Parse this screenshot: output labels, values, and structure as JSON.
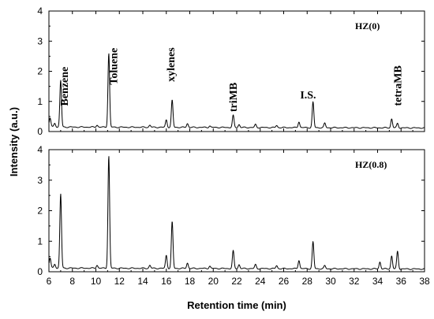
{
  "chart_data": {
    "type": "line",
    "xlabel": "Retention time (min)",
    "ylabel": "Intensity (a.u.)",
    "xlim": [
      6,
      38
    ],
    "x_ticks": [
      6,
      8,
      10,
      12,
      14,
      16,
      18,
      20,
      22,
      24,
      26,
      28,
      30,
      32,
      34,
      36,
      38
    ],
    "grid": false,
    "panels": [
      {
        "title": "HZ(0)",
        "ylim": [
          0,
          4
        ],
        "y_ticks": [
          0,
          1,
          2,
          3,
          4
        ],
        "baseline": 0.15,
        "peaks": [
          {
            "x": 6.1,
            "y": 0.45
          },
          {
            "x": 6.5,
            "y": 0.28
          },
          {
            "x": 7.0,
            "y": 1.7
          },
          {
            "x": 10.1,
            "y": 0.22
          },
          {
            "x": 11.1,
            "y": 2.6
          },
          {
            "x": 14.6,
            "y": 0.22
          },
          {
            "x": 16.0,
            "y": 0.4
          },
          {
            "x": 16.5,
            "y": 1.05
          },
          {
            "x": 17.8,
            "y": 0.28
          },
          {
            "x": 19.7,
            "y": 0.2
          },
          {
            "x": 21.7,
            "y": 0.55
          },
          {
            "x": 22.2,
            "y": 0.25
          },
          {
            "x": 23.6,
            "y": 0.25
          },
          {
            "x": 25.4,
            "y": 0.22
          },
          {
            "x": 27.3,
            "y": 0.35
          },
          {
            "x": 28.5,
            "y": 1.0
          },
          {
            "x": 29.5,
            "y": 0.3
          },
          {
            "x": 35.2,
            "y": 0.45
          },
          {
            "x": 35.7,
            "y": 0.3
          }
        ],
        "annotations": [
          {
            "text": "Benzene",
            "x": 7.6,
            "y": 0.85,
            "rotate": true
          },
          {
            "text": "Toluene",
            "x": 11.8,
            "y": 1.55,
            "rotate": true
          },
          {
            "text": "xylenes",
            "x": 16.7,
            "y": 1.65,
            "rotate": true
          },
          {
            "text": "triMB",
            "x": 22.0,
            "y": 0.65,
            "rotate": true
          },
          {
            "text": "I.S.",
            "x": 27.4,
            "y": 1.1,
            "rotate": false
          },
          {
            "text": "tetraMB",
            "x": 36.0,
            "y": 0.85,
            "rotate": true
          }
        ]
      },
      {
        "title": "HZ(0.8)",
        "ylim": [
          0,
          4
        ],
        "y_ticks": [
          0,
          1,
          2,
          3,
          4
        ],
        "baseline": 0.12,
        "peaks": [
          {
            "x": 6.1,
            "y": 0.45
          },
          {
            "x": 6.5,
            "y": 0.25
          },
          {
            "x": 7.0,
            "y": 2.55
          },
          {
            "x": 10.1,
            "y": 0.22
          },
          {
            "x": 11.1,
            "y": 3.8
          },
          {
            "x": 14.6,
            "y": 0.22
          },
          {
            "x": 16.0,
            "y": 0.55
          },
          {
            "x": 16.5,
            "y": 1.65
          },
          {
            "x": 17.8,
            "y": 0.3
          },
          {
            "x": 19.7,
            "y": 0.2
          },
          {
            "x": 21.7,
            "y": 0.7
          },
          {
            "x": 22.2,
            "y": 0.25
          },
          {
            "x": 23.6,
            "y": 0.25
          },
          {
            "x": 25.4,
            "y": 0.22
          },
          {
            "x": 27.3,
            "y": 0.4
          },
          {
            "x": 28.5,
            "y": 1.0
          },
          {
            "x": 29.5,
            "y": 0.22
          },
          {
            "x": 34.2,
            "y": 0.35
          },
          {
            "x": 35.2,
            "y": 0.55
          },
          {
            "x": 35.7,
            "y": 0.7
          }
        ],
        "annotations": []
      }
    ]
  }
}
